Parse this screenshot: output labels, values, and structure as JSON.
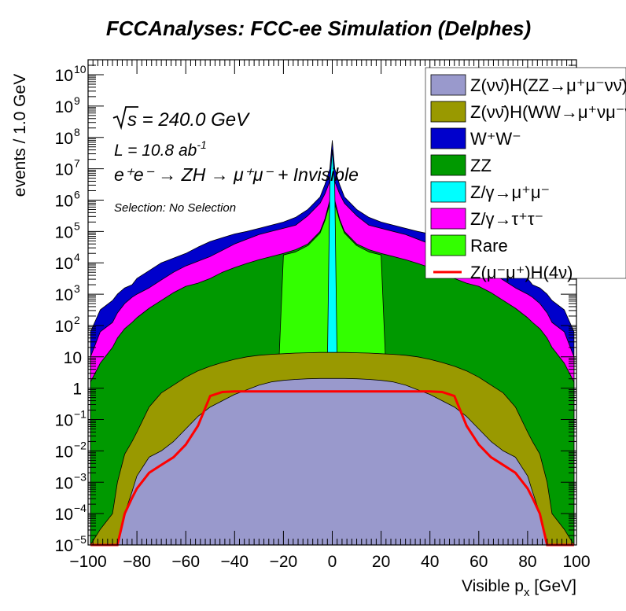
{
  "chart_data": {
    "type": "area",
    "title": "FCCAnalyses: FCC-ee Simulation (Delphes)",
    "xlabel_main": "Visible p",
    "xlabel_sub": "x",
    "xlabel_unit": " [GeV]",
    "ylabel": "events / 1.0 GeV",
    "xlim": [
      -100,
      100
    ],
    "ylim": [
      1e-05,
      30000000000.0
    ],
    "yscale": "log",
    "x_ticks": [
      -100,
      -80,
      -60,
      -40,
      -20,
      0,
      20,
      40,
      60,
      80,
      100
    ],
    "y_tick_labels": [
      {
        "exp": -5,
        "base": "10",
        "sup": "−5"
      },
      {
        "exp": -4,
        "base": "10",
        "sup": "−4"
      },
      {
        "exp": -3,
        "base": "10",
        "sup": "−3"
      },
      {
        "exp": -2,
        "base": "10",
        "sup": "−2"
      },
      {
        "exp": -1,
        "base": "10",
        "sup": "−1"
      },
      {
        "exp": 0,
        "base": "1",
        "sup": ""
      },
      {
        "exp": 1,
        "base": "10",
        "sup": ""
      },
      {
        "exp": 2,
        "base": "10",
        "sup": "2"
      },
      {
        "exp": 3,
        "base": "10",
        "sup": "3"
      },
      {
        "exp": 4,
        "base": "10",
        "sup": "4"
      },
      {
        "exp": 5,
        "base": "10",
        "sup": "5"
      },
      {
        "exp": 6,
        "base": "10",
        "sup": "6"
      },
      {
        "exp": 7,
        "base": "10",
        "sup": "7"
      },
      {
        "exp": 8,
        "base": "10",
        "sup": "8"
      },
      {
        "exp": 9,
        "base": "10",
        "sup": "9"
      },
      {
        "exp": 10,
        "base": "10",
        "sup": "10"
      }
    ],
    "annotations": {
      "sqrt_s": "s = 240.0 GeV",
      "lumi_main": "L = 10.8 ab",
      "lumi_sup": "-1",
      "process": "e⁺e⁻ → ZH → μ⁺μ⁻ + Invisible",
      "selection": "Selection: No Selection"
    },
    "x": [
      -99,
      -95,
      -90,
      -88,
      -85,
      -82,
      -80,
      -75,
      -70,
      -65,
      -60,
      -55,
      -50,
      -45,
      -40,
      -35,
      -30,
      -25,
      -20,
      -15,
      -10,
      -5,
      -3,
      -1,
      0,
      1,
      3,
      5,
      10,
      15,
      20,
      25,
      30,
      35,
      40,
      45,
      50,
      55,
      60,
      65,
      70,
      75,
      80,
      82,
      85,
      88,
      90,
      95,
      99
    ],
    "series": [
      {
        "name": "Z(νν̄)H(ZZ→μ⁺μ⁻νν̄)",
        "color": "#9999cc",
        "log10_top": [
          -5,
          -5,
          -5,
          -5,
          -4,
          -3.3,
          -2.8,
          -2.2,
          -2.0,
          -1.7,
          -1.3,
          -0.9,
          -0.6,
          -0.4,
          -0.2,
          -0.05,
          0.1,
          0.2,
          0.25,
          0.28,
          0.3,
          0.31,
          0.31,
          0.31,
          0.31,
          0.31,
          0.31,
          0.31,
          0.3,
          0.28,
          0.25,
          0.2,
          0.1,
          -0.05,
          -0.2,
          -0.4,
          -0.6,
          -0.9,
          -1.3,
          -1.7,
          -2.0,
          -2.2,
          -2.8,
          -3.3,
          -4,
          -5,
          -5,
          -5,
          -5
        ]
      },
      {
        "name": "Z(νν̄)H(WW→μ⁺νμ⁻ν̄)",
        "color": "#999900",
        "log10_top": [
          -5,
          -4.5,
          -4,
          -3,
          -2.1,
          -1.7,
          -1.4,
          -0.6,
          -0.15,
          0.1,
          0.35,
          0.55,
          0.7,
          0.82,
          0.92,
          1.0,
          1.05,
          1.08,
          1.1,
          1.12,
          1.13,
          1.14,
          1.14,
          1.14,
          1.14,
          1.14,
          1.14,
          1.14,
          1.13,
          1.12,
          1.1,
          1.08,
          1.05,
          1.0,
          0.92,
          0.82,
          0.7,
          0.55,
          0.35,
          0.1,
          -0.15,
          -0.6,
          -1.4,
          -1.7,
          -2.1,
          -3,
          -4,
          -4.5,
          -5
        ]
      },
      {
        "name": "W⁺W⁻",
        "color": "#0000cc",
        "log10_top": [
          1.8,
          2.5,
          2.8,
          3.0,
          3.2,
          3.3,
          3.5,
          3.75,
          4.0,
          4.15,
          4.3,
          4.5,
          4.68,
          4.8,
          4.92,
          5.0,
          5.1,
          5.2,
          5.3,
          5.45,
          5.7,
          6.1,
          6.5,
          7.0,
          7.9,
          7.0,
          6.5,
          6.1,
          5.7,
          5.45,
          5.3,
          5.2,
          5.1,
          5.0,
          4.92,
          4.8,
          4.68,
          4.5,
          4.3,
          4.15,
          4.0,
          3.75,
          3.5,
          3.3,
          3.2,
          3.0,
          2.8,
          2.5,
          1.8
        ]
      },
      {
        "name": "ZZ",
        "color": "#009900",
        "log10_top": [
          0.2,
          0.8,
          1.3,
          1.6,
          1.9,
          2.1,
          2.25,
          2.55,
          2.8,
          3.05,
          3.25,
          3.35,
          3.5,
          3.7,
          3.85,
          3.98,
          4.1,
          4.2,
          4.3,
          4.42,
          4.6,
          5.0,
          5.4,
          6.0,
          7.2,
          6.0,
          5.4,
          5.0,
          4.6,
          4.42,
          4.3,
          4.2,
          4.1,
          3.98,
          3.85,
          3.7,
          3.5,
          3.35,
          3.25,
          3.05,
          2.8,
          2.55,
          2.25,
          2.1,
          1.9,
          1.6,
          1.3,
          0.8,
          0.2
        ]
      },
      {
        "name": "Z/γ→μ⁺μ⁻",
        "color": "#00ffff",
        "log10_top": [
          -5,
          -5,
          -5,
          -5,
          -5,
          -5,
          -5,
          -5,
          -5,
          -5,
          -5,
          -5,
          -5,
          -5,
          -5,
          -5,
          -5,
          -5,
          -5,
          -5,
          -5,
          -5,
          -5,
          6.5,
          7.6,
          6.5,
          -5,
          -5,
          -5,
          -5,
          -5,
          -5,
          -5,
          -5,
          -5,
          -5,
          -5,
          -5,
          -5,
          -5,
          -5,
          -5,
          -5,
          -5,
          -5,
          -5,
          -5,
          -5,
          -5
        ]
      },
      {
        "name": "Z/γ→τ⁺τ⁻",
        "color": "#ff00ff",
        "log10_top": [
          1.0,
          1.8,
          2.1,
          2.4,
          2.7,
          2.9,
          3.0,
          3.2,
          3.45,
          3.7,
          3.9,
          4.05,
          4.2,
          4.4,
          4.6,
          4.75,
          4.9,
          5.0,
          5.1,
          5.2,
          5.5,
          5.9,
          6.2,
          6.6,
          7.4,
          6.6,
          6.2,
          5.9,
          5.5,
          5.2,
          5.1,
          5.0,
          4.9,
          4.75,
          4.6,
          4.4,
          4.2,
          4.05,
          3.9,
          3.7,
          3.45,
          3.2,
          3.0,
          2.9,
          2.7,
          2.4,
          2.1,
          1.8,
          1.0
        ]
      },
      {
        "name": "Rare",
        "color": "#33ff00",
        "log10_top": [
          -5,
          -5,
          -5,
          -5,
          -5,
          -5,
          -5,
          -5,
          -5,
          -5,
          -5,
          -5,
          -5,
          -5,
          -5,
          -5,
          -5,
          -5,
          4.25,
          4.35,
          4.55,
          4.95,
          5.35,
          5.9,
          7.0,
          5.9,
          5.35,
          4.95,
          4.55,
          4.35,
          4.25,
          -5,
          -5,
          -5,
          -5,
          -5,
          -5,
          -5,
          -5,
          -5,
          -5,
          -5,
          -5,
          -5,
          -5,
          -5,
          -5,
          -5,
          -5
        ]
      },
      {
        "name": "Z(μ⁻μ⁺)H(4ν)",
        "color": "#ff0000",
        "style": "line",
        "log10_top": [
          -5,
          -5,
          -5,
          -5,
          -4.0,
          -3.5,
          -3.2,
          -2.7,
          -2.45,
          -2.2,
          -1.8,
          -1.2,
          -0.25,
          -0.12,
          -0.1,
          -0.1,
          -0.1,
          -0.1,
          -0.1,
          -0.1,
          -0.1,
          -0.1,
          -0.1,
          -0.1,
          -0.1,
          -0.1,
          -0.1,
          -0.1,
          -0.1,
          -0.1,
          -0.1,
          -0.1,
          -0.1,
          -0.1,
          -0.1,
          -0.12,
          -0.25,
          -1.2,
          -1.8,
          -2.2,
          -2.45,
          -2.7,
          -3.2,
          -3.5,
          -4.0,
          -5,
          -5,
          -5,
          -5
        ]
      }
    ],
    "legend_position": "top-right"
  }
}
